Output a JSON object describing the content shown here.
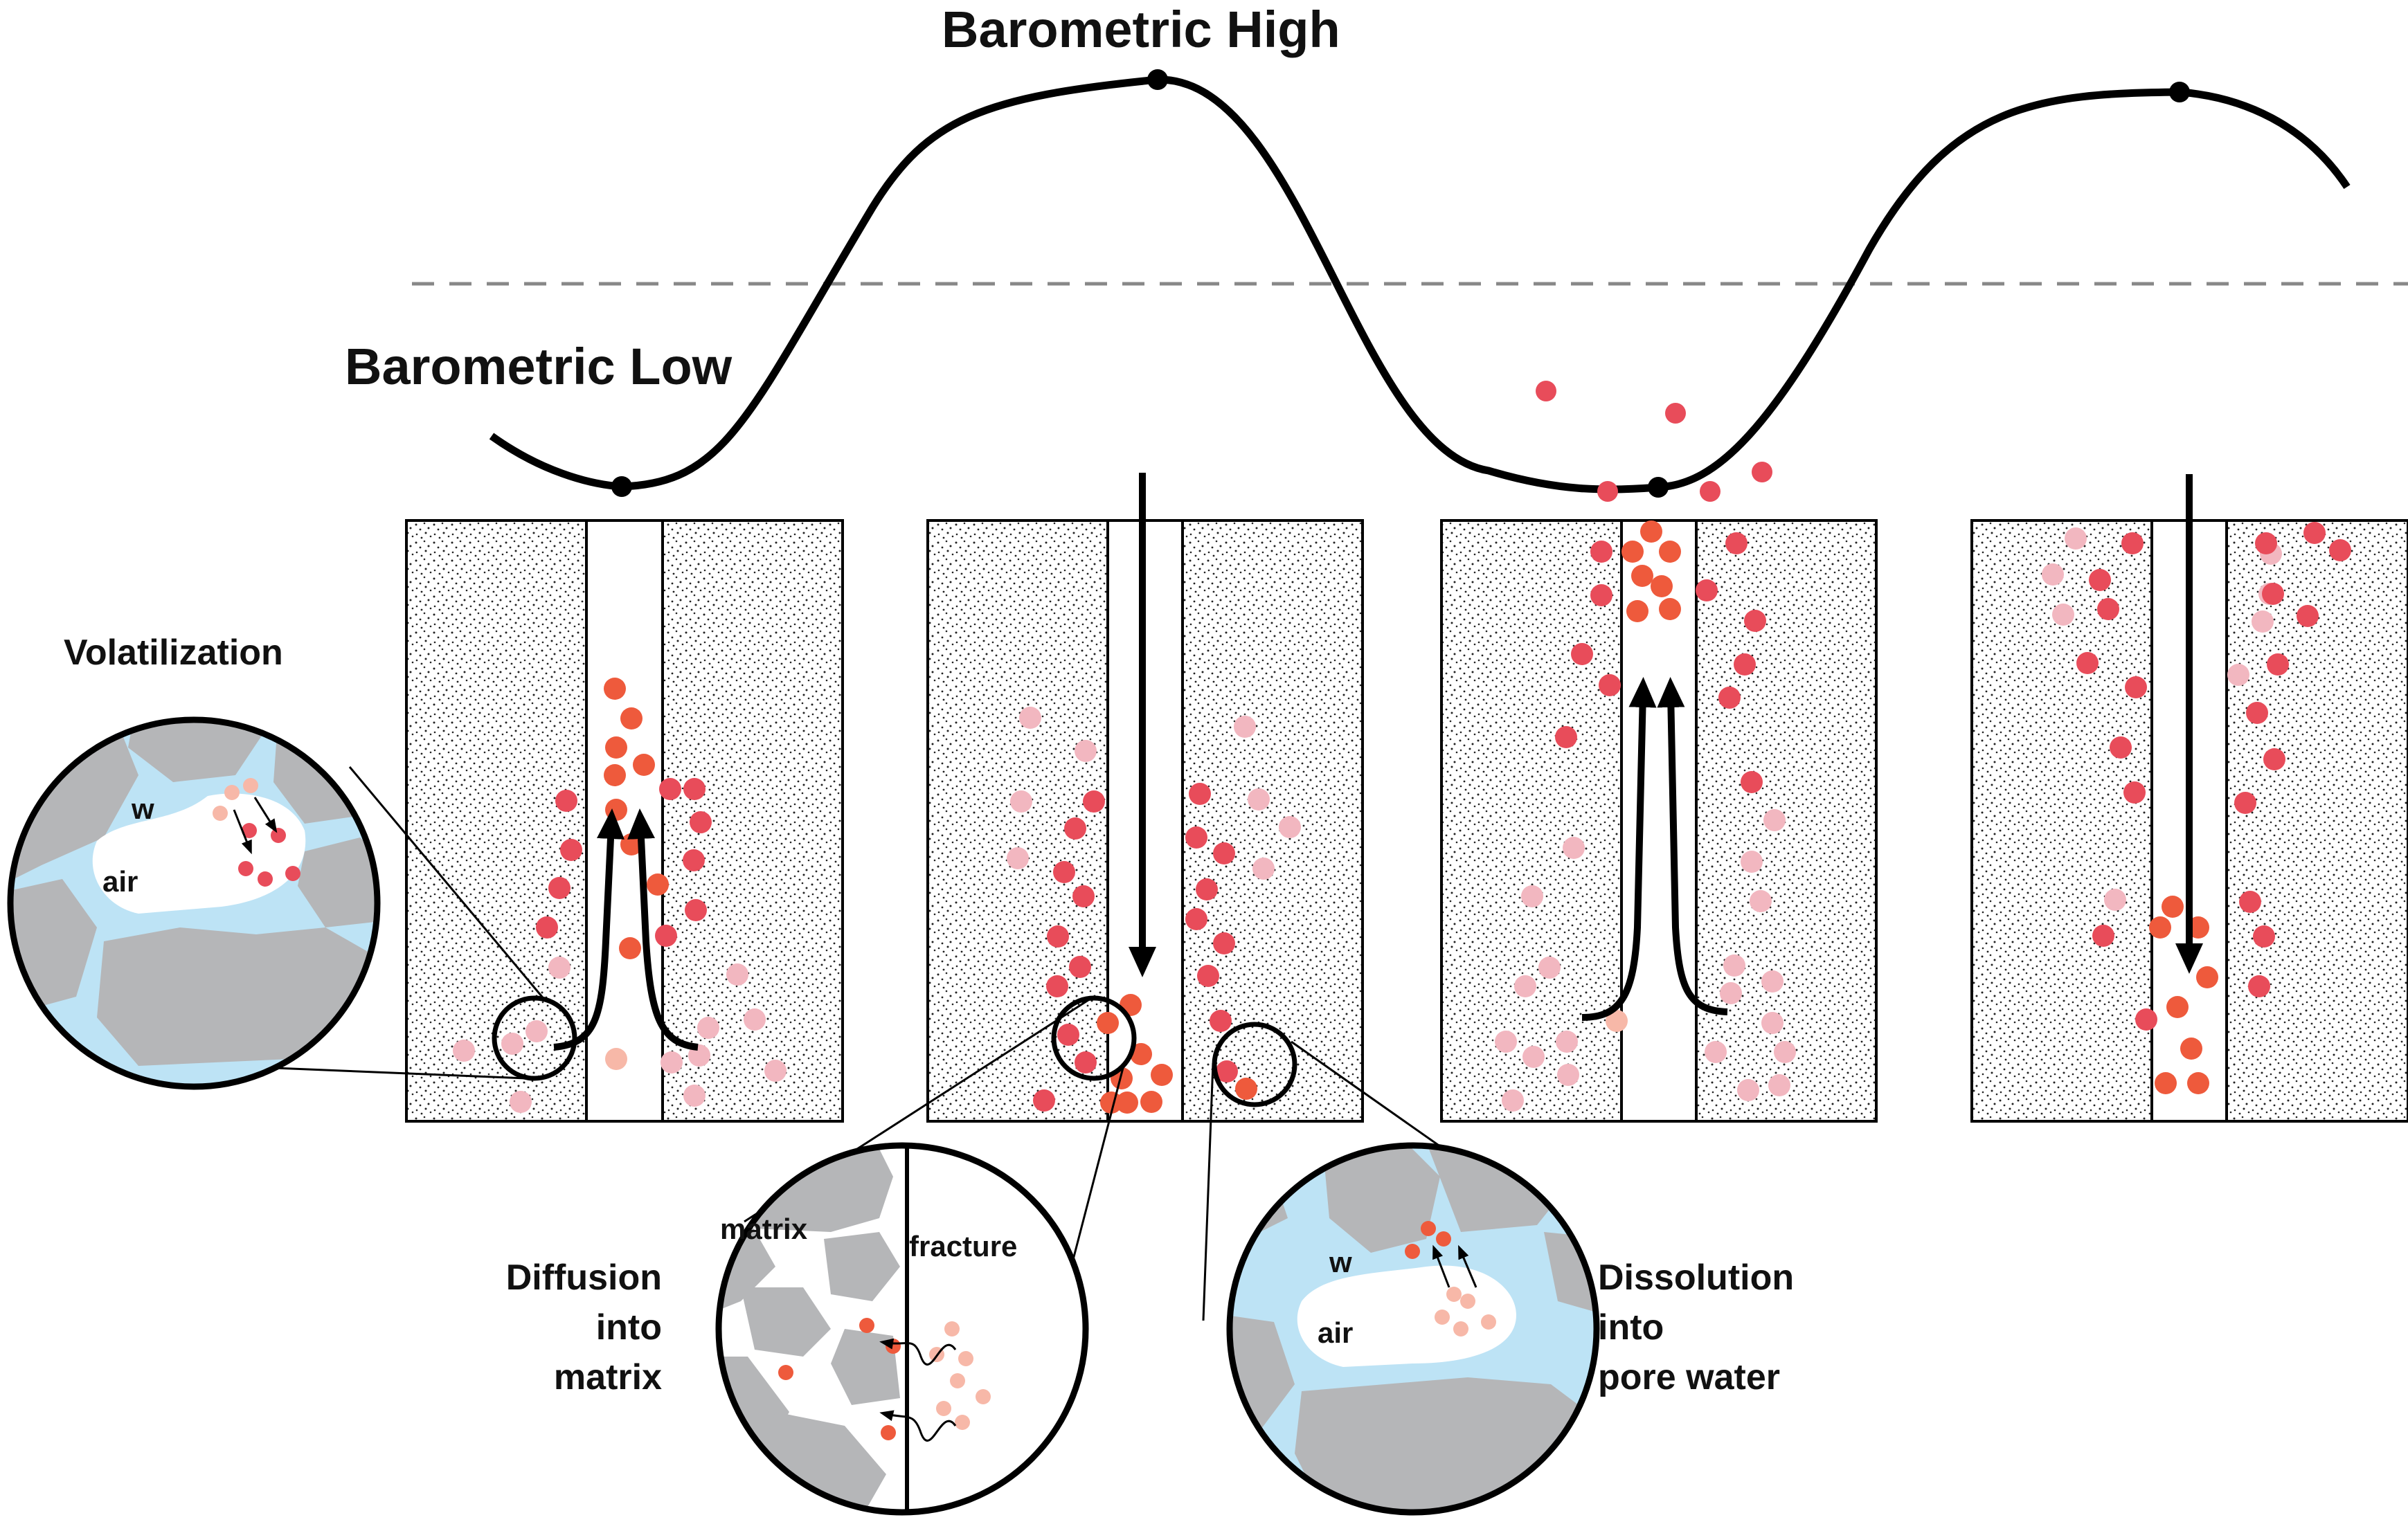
{
  "labels": {
    "barometric_high": "Barometric High",
    "barometric_low": "Barometric Low",
    "volatilization": "Volatilization",
    "diffusion_line1": "Diffusion",
    "diffusion_line2": "into",
    "diffusion_line3": "matrix",
    "dissolution_line1": "Dissolution",
    "dissolution_line2": "into",
    "dissolution_line3": "pore water",
    "water_short": "w",
    "air": "air",
    "matrix": "matrix",
    "fracture": "fracture"
  },
  "colors": {
    "contaminant_strong": "#EE5A3C",
    "contaminant_red": "#E84C5A",
    "contaminant_faded": "#F7B8A8",
    "contaminant_faded_pink": "#F2B7C0",
    "pore_water": "#BDE3F5",
    "grain": "#B5B6B8",
    "curve": "#000000",
    "reference_line": "#888888"
  },
  "icons": [
    "contaminant-particle-icon",
    "airflow-arrow-icon",
    "diffusion-wave-icon",
    "magnifier-circle-icon"
  ]
}
